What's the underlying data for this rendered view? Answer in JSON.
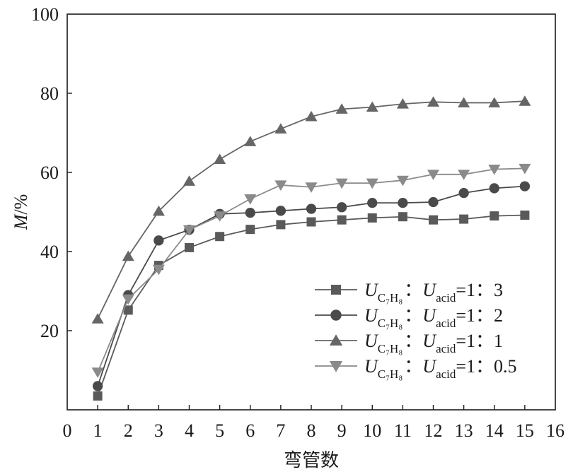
{
  "chart_data": {
    "type": "line",
    "title": "",
    "xlabel": "弯管数",
    "ylabel": "M/%",
    "ylabel_italic": "M",
    "ylabel_unit": "/%",
    "xlim": [
      0,
      16
    ],
    "ylim": [
      0,
      100
    ],
    "xticks": [
      0,
      1,
      2,
      3,
      4,
      5,
      6,
      7,
      8,
      9,
      10,
      11,
      12,
      13,
      14,
      15,
      16
    ],
    "yticks": [
      20,
      40,
      60,
      80,
      100
    ],
    "grid": false,
    "legend_position": "bottom-right",
    "x": [
      1,
      2,
      3,
      4,
      5,
      6,
      7,
      8,
      9,
      10,
      11,
      12,
      13,
      14,
      15
    ],
    "series": [
      {
        "label_parts": [
          "U",
          "C₇H₈",
          "：",
          "U",
          "acid",
          "=1：3"
        ],
        "marker": "square",
        "color": "#5a5a5a",
        "values": [
          3.5,
          25.2,
          36.5,
          41.0,
          43.8,
          45.6,
          46.8,
          47.5,
          48.0,
          48.5,
          48.8,
          48.0,
          48.2,
          49.0,
          49.2
        ]
      },
      {
        "label_parts": [
          "U",
          "C₇H₈",
          "：",
          "U",
          "acid",
          "=1：2"
        ],
        "marker": "circle",
        "color": "#4a4a4a",
        "values": [
          6.0,
          29.0,
          42.8,
          45.5,
          49.5,
          49.8,
          50.3,
          50.8,
          51.2,
          52.3,
          52.3,
          52.5,
          54.8,
          56.0,
          56.5
        ]
      },
      {
        "label_parts": [
          "U",
          "C₇H₈",
          "：",
          "U",
          "acid",
          "=1：1"
        ],
        "marker": "triangle-up",
        "color": "#666666",
        "values": [
          23.0,
          38.8,
          50.2,
          57.8,
          63.3,
          67.8,
          71.0,
          74.1,
          76.0,
          76.5,
          77.3,
          77.8,
          77.6,
          77.6,
          78.0
        ]
      },
      {
        "label_parts": [
          "U",
          "C₇H₈",
          "：",
          "U",
          "acid",
          "=1：0.5"
        ],
        "marker": "triangle-down",
        "color": "#8a8a8a",
        "values": [
          9.5,
          28.0,
          35.5,
          45.5,
          49.0,
          53.3,
          56.8,
          56.3,
          57.3,
          57.3,
          58.0,
          59.5,
          59.5,
          60.8,
          61.0
        ]
      }
    ]
  }
}
